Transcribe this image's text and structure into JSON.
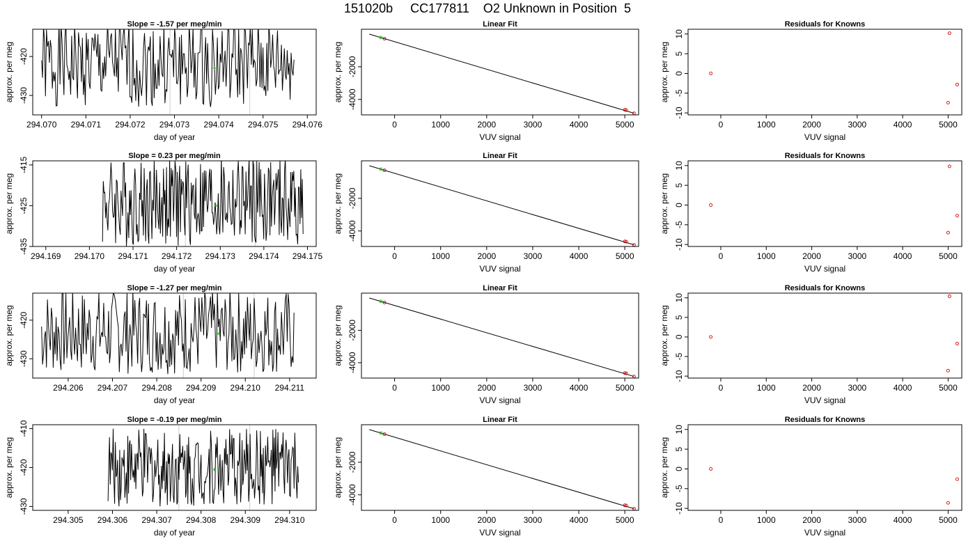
{
  "figure": {
    "title": "151020b     CC177811    O2 Unknown in Position  5"
  },
  "chart_data": [
    {
      "type": "line",
      "title": "Slope =  -1.57  per meg/min",
      "xlabel": "day of year",
      "ylabel": "approx. per meg",
      "xlim": [
        294.0698,
        294.0762
      ],
      "ylim": [
        -435,
        -413
      ],
      "xticks": [
        294.07,
        294.071,
        294.072,
        294.073,
        294.074,
        294.075,
        294.076
      ],
      "xtick_labels": [
        "294.070",
        "294.071",
        "294.072",
        "294.073",
        "294.074",
        "294.075",
        "294.076"
      ],
      "yticks": [
        -420,
        -430
      ],
      "ytick_labels": [
        "-420",
        "-430"
      ],
      "vlines": [
        294.0729,
        294.0747
      ],
      "trace": {
        "x_start": 294.07,
        "x_end": 294.0757,
        "mean": -422,
        "amp": 11
      },
      "marker": {
        "x": 294.0739,
        "y": -423,
        "color": "#00cc00"
      },
      "grid": false,
      "legend": "none"
    },
    {
      "type": "scatter",
      "title": "Linear Fit",
      "xlabel": "VUV signal",
      "ylabel": "approx. per meg",
      "xlim": [
        -720,
        5300
      ],
      "ylim": [
        -4950,
        300
      ],
      "xticks": [
        0,
        1000,
        2000,
        3000,
        4000,
        5000
      ],
      "xtick_labels": [
        "0",
        "1000",
        "2000",
        "3000",
        "4000",
        "5000"
      ],
      "yticks": [
        -2000,
        -4000
      ],
      "ytick_labels": [
        "-2000",
        "-4000"
      ],
      "fit_line": {
        "x": [
          -550,
          5200
        ],
        "y": [
          0,
          -4850
        ]
      },
      "points": [
        {
          "x": -300,
          "y": -210,
          "color": "#00cc00"
        },
        {
          "x": -220,
          "y": -280,
          "color": "#cc0000"
        },
        {
          "x": 5000,
          "y": -4640,
          "color": "#cc0000"
        },
        {
          "x": 5030,
          "y": -4655,
          "color": "#cc0000"
        },
        {
          "x": 5200,
          "y": -4850,
          "color": "#cc0000"
        }
      ],
      "grid": false,
      "legend": "none"
    },
    {
      "type": "scatter",
      "title": "Residuals for Knowns",
      "xlabel": "VUV signal",
      "ylabel": "approx. per meg",
      "xlim": [
        -720,
        5300
      ],
      "ylim": [
        -10.5,
        11.2
      ],
      "xticks": [
        0,
        1000,
        2000,
        3000,
        4000,
        5000
      ],
      "xtick_labels": [
        "0",
        "1000",
        "2000",
        "3000",
        "4000",
        "5000"
      ],
      "yticks": [
        10,
        5,
        0,
        -5,
        -10
      ],
      "ytick_labels": [
        "10",
        "5",
        "0",
        "-5",
        "-10"
      ],
      "points": [
        {
          "x": -220,
          "y": 0,
          "color": "#cc0000"
        },
        {
          "x": 5030,
          "y": 10.2,
          "color": "#cc0000"
        },
        {
          "x": 5000,
          "y": -7.4,
          "color": "#cc0000"
        },
        {
          "x": 5200,
          "y": -2.8,
          "color": "#cc0000"
        }
      ],
      "grid": false,
      "legend": "none"
    },
    {
      "type": "line",
      "title": "Slope =  0.23  per meg/min",
      "xlabel": "day of year",
      "ylabel": "approx. per meg",
      "xlim": [
        294.1687,
        294.1752
      ],
      "ylim": [
        -435,
        -414
      ],
      "xticks": [
        294.169,
        294.17,
        294.171,
        294.172,
        294.173,
        294.174,
        294.175
      ],
      "xtick_labels": [
        "294.169",
        "294.170",
        "294.171",
        "294.172",
        "294.173",
        "294.174",
        "294.175"
      ],
      "yticks": [
        -415,
        -425,
        -435
      ],
      "ytick_labels": [
        "-415",
        "-425",
        "-435"
      ],
      "vlines": [
        294.1722,
        294.1738
      ],
      "trace": {
        "x_start": 294.1703,
        "x_end": 294.1749,
        "mean": -424,
        "amp": 11
      },
      "marker": {
        "x": 294.1729,
        "y": -425,
        "color": "#00cc00"
      },
      "grid": false,
      "legend": "none"
    },
    {
      "type": "scatter",
      "title": "Linear Fit",
      "xlabel": "VUV signal",
      "ylabel": "approx. per meg",
      "xlim": [
        -720,
        5300
      ],
      "ylim": [
        -4950,
        300
      ],
      "xticks": [
        0,
        1000,
        2000,
        3000,
        4000,
        5000
      ],
      "xtick_labels": [
        "0",
        "1000",
        "2000",
        "3000",
        "4000",
        "5000"
      ],
      "yticks": [
        -2000,
        -4000
      ],
      "ytick_labels": [
        "-2000",
        "-4000"
      ],
      "fit_line": {
        "x": [
          -550,
          5200
        ],
        "y": [
          0,
          -4850
        ]
      },
      "points": [
        {
          "x": -300,
          "y": -210,
          "color": "#00cc00"
        },
        {
          "x": -220,
          "y": -280,
          "color": "#cc0000"
        },
        {
          "x": 5000,
          "y": -4640,
          "color": "#cc0000"
        },
        {
          "x": 5030,
          "y": -4655,
          "color": "#cc0000"
        },
        {
          "x": 5200,
          "y": -4850,
          "color": "#cc0000"
        }
      ],
      "grid": false,
      "legend": "none"
    },
    {
      "type": "scatter",
      "title": "Residuals for Knowns",
      "xlabel": "VUV signal",
      "ylabel": "approx. per meg",
      "xlim": [
        -720,
        5300
      ],
      "ylim": [
        -10.5,
        11.2
      ],
      "xticks": [
        0,
        1000,
        2000,
        3000,
        4000,
        5000
      ],
      "xtick_labels": [
        "0",
        "1000",
        "2000",
        "3000",
        "4000",
        "5000"
      ],
      "yticks": [
        10,
        5,
        0,
        -5,
        -10
      ],
      "ytick_labels": [
        "10",
        "5",
        "0",
        "-5",
        "-10"
      ],
      "points": [
        {
          "x": -220,
          "y": 0,
          "color": "#cc0000"
        },
        {
          "x": 5030,
          "y": 9.8,
          "color": "#cc0000"
        },
        {
          "x": 5000,
          "y": -7.0,
          "color": "#cc0000"
        },
        {
          "x": 5200,
          "y": -2.7,
          "color": "#cc0000"
        }
      ],
      "grid": false,
      "legend": "none"
    },
    {
      "type": "line",
      "title": "Slope =  -1.27  per meg/min",
      "xlabel": "day of year",
      "ylabel": "approx. per meg",
      "xlim": [
        294.2052,
        294.2116
      ],
      "ylim": [
        -435,
        -413
      ],
      "xticks": [
        294.206,
        294.207,
        294.208,
        294.209,
        294.21,
        294.211
      ],
      "xtick_labels": [
        "294.206",
        "294.207",
        "294.208",
        "294.209",
        "294.210",
        "294.211"
      ],
      "yticks": [
        -420,
        -430
      ],
      "ytick_labels": [
        "-420",
        "-430"
      ],
      "vlines": [
        294.2086,
        294.2102
      ],
      "trace": {
        "x_start": 294.2054,
        "x_end": 294.2111,
        "mean": -423,
        "amp": 11
      },
      "marker": {
        "x": 294.2094,
        "y": -423.5,
        "color": "#00cc00"
      },
      "grid": false,
      "legend": "none"
    },
    {
      "type": "scatter",
      "title": "Linear Fit",
      "xlabel": "VUV signal",
      "ylabel": "approx. per meg",
      "xlim": [
        -720,
        5300
      ],
      "ylim": [
        -4950,
        300
      ],
      "xticks": [
        0,
        1000,
        2000,
        3000,
        4000,
        5000
      ],
      "xtick_labels": [
        "0",
        "1000",
        "2000",
        "3000",
        "4000",
        "5000"
      ],
      "yticks": [
        -2000,
        -4000
      ],
      "ytick_labels": [
        "-2000",
        "-4000"
      ],
      "fit_line": {
        "x": [
          -550,
          5200
        ],
        "y": [
          0,
          -4850
        ]
      },
      "points": [
        {
          "x": -300,
          "y": -210,
          "color": "#00cc00"
        },
        {
          "x": -220,
          "y": -280,
          "color": "#cc0000"
        },
        {
          "x": 5000,
          "y": -4640,
          "color": "#cc0000"
        },
        {
          "x": 5030,
          "y": -4655,
          "color": "#cc0000"
        },
        {
          "x": 5200,
          "y": -4850,
          "color": "#cc0000"
        }
      ],
      "grid": false,
      "legend": "none"
    },
    {
      "type": "scatter",
      "title": "Residuals for Knowns",
      "xlabel": "VUV signal",
      "ylabel": "approx. per meg",
      "xlim": [
        -720,
        5300
      ],
      "ylim": [
        -10.5,
        11.2
      ],
      "xticks": [
        0,
        1000,
        2000,
        3000,
        4000,
        5000
      ],
      "xtick_labels": [
        "0",
        "1000",
        "2000",
        "3000",
        "4000",
        "5000"
      ],
      "yticks": [
        10,
        5,
        0,
        -5,
        -10
      ],
      "ytick_labels": [
        "10",
        "5",
        "0",
        "-5",
        "-10"
      ],
      "points": [
        {
          "x": -220,
          "y": 0,
          "color": "#cc0000"
        },
        {
          "x": 5030,
          "y": 10.4,
          "color": "#cc0000"
        },
        {
          "x": 5000,
          "y": -8.6,
          "color": "#cc0000"
        },
        {
          "x": 5200,
          "y": -1.7,
          "color": "#cc0000"
        }
      ],
      "grid": false,
      "legend": "none"
    },
    {
      "type": "line",
      "title": "Slope =  -0.19  per meg/min",
      "xlabel": "day of year",
      "ylabel": "approx. per meg",
      "xlim": [
        294.3042,
        294.3106
      ],
      "ylim": [
        -431,
        -409
      ],
      "xticks": [
        294.305,
        294.306,
        294.307,
        294.308,
        294.309,
        294.31
      ],
      "xtick_labels": [
        "294.305",
        "294.306",
        "294.307",
        "294.308",
        "294.309",
        "294.310"
      ],
      "yticks": [
        -410,
        -420,
        -430
      ],
      "ytick_labels": [
        "-410",
        "-420",
        "-430"
      ],
      "vlines": [
        294.3075,
        294.3091
      ],
      "trace": {
        "x_start": 294.3059,
        "x_end": 294.3102,
        "mean": -420,
        "amp": 10
      },
      "marker": {
        "x": 294.3083,
        "y": -420.5,
        "color": "#00cc00"
      },
      "grid": false,
      "legend": "none"
    },
    {
      "type": "scatter",
      "title": "Linear Fit",
      "xlabel": "VUV signal",
      "ylabel": "approx. per meg",
      "xlim": [
        -720,
        5300
      ],
      "ylim": [
        -4950,
        300
      ],
      "xticks": [
        0,
        1000,
        2000,
        3000,
        4000,
        5000
      ],
      "xtick_labels": [
        "0",
        "1000",
        "2000",
        "3000",
        "4000",
        "5000"
      ],
      "yticks": [
        -2000,
        -4000
      ],
      "ytick_labels": [
        "-2000",
        "-4000"
      ],
      "fit_line": {
        "x": [
          -550,
          5200
        ],
        "y": [
          0,
          -4850
        ]
      },
      "points": [
        {
          "x": -300,
          "y": -210,
          "color": "#00cc00"
        },
        {
          "x": -220,
          "y": -280,
          "color": "#cc0000"
        },
        {
          "x": 5000,
          "y": -4640,
          "color": "#cc0000"
        },
        {
          "x": 5030,
          "y": -4655,
          "color": "#cc0000"
        },
        {
          "x": 5200,
          "y": -4850,
          "color": "#cc0000"
        }
      ],
      "grid": false,
      "legend": "none"
    },
    {
      "type": "scatter",
      "title": "Residuals for Knowns",
      "xlabel": "VUV signal",
      "ylabel": "approx. per meg",
      "xlim": [
        -720,
        5300
      ],
      "ylim": [
        -10.5,
        11.2
      ],
      "xticks": [
        0,
        1000,
        2000,
        3000,
        4000,
        5000
      ],
      "xtick_labels": [
        "0",
        "1000",
        "2000",
        "3000",
        "4000",
        "5000"
      ],
      "yticks": [
        10,
        5,
        0,
        -5,
        -10
      ],
      "ytick_labels": [
        "10",
        "5",
        "0",
        "-5",
        "-10"
      ],
      "points": [
        {
          "x": -220,
          "y": 0,
          "color": "#cc0000"
        },
        {
          "x": 5000,
          "y": -8.6,
          "color": "#cc0000"
        },
        {
          "x": 5200,
          "y": -2.6,
          "color": "#cc0000"
        }
      ],
      "grid": false,
      "legend": "none"
    }
  ]
}
